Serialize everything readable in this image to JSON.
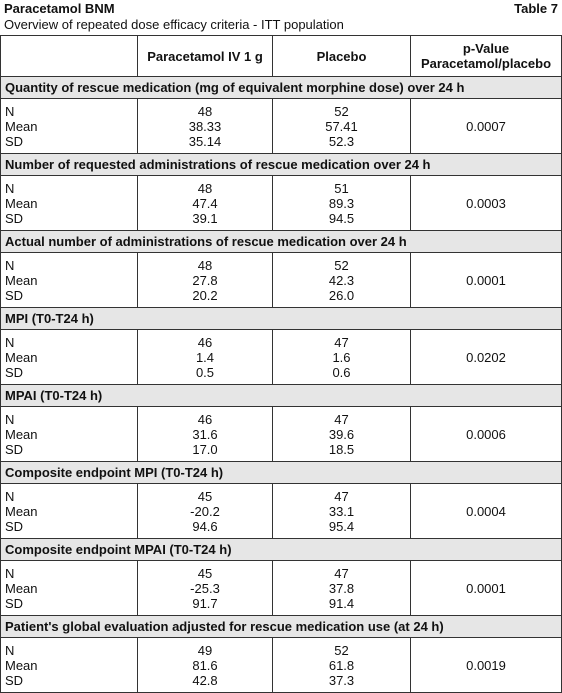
{
  "header": {
    "title": "Paracetamol BNM",
    "table_label": "Table 7",
    "subtitle": "Overview of repeated dose efficacy criteria - ITT population"
  },
  "table": {
    "columns": [
      "Paracetamol IV 1 g",
      "Placebo",
      "p-Value",
      "Paracetamol/placebo"
    ],
    "sections": [
      {
        "title": "Quantity of rescue medication (mg of equivalent morphine dose) over 24 h",
        "rows": [
          [
            "N",
            "48",
            "52"
          ],
          [
            "Mean",
            "38.33",
            "57.41"
          ],
          [
            "SD",
            "35.14",
            "52.3"
          ]
        ],
        "p_value": "0.0007"
      },
      {
        "title": "Number of requested administrations of rescue medication over 24 h",
        "rows": [
          [
            "N",
            "48",
            "51"
          ],
          [
            "Mean",
            "47.4",
            "89.3"
          ],
          [
            "SD",
            "39.1",
            "94.5"
          ]
        ],
        "p_value": "0.0003"
      },
      {
        "title": "Actual number of administrations of rescue medication over 24 h",
        "rows": [
          [
            "N",
            "48",
            "52"
          ],
          [
            "Mean",
            "27.8",
            "42.3"
          ],
          [
            "SD",
            "20.2",
            "26.0"
          ]
        ],
        "p_value": "0.0001"
      },
      {
        "title": "MPI (T0-T24 h)",
        "rows": [
          [
            "N",
            "46",
            "47"
          ],
          [
            "Mean",
            "1.4",
            "1.6"
          ],
          [
            "SD",
            "0.5",
            "0.6"
          ]
        ],
        "p_value": "0.0202"
      },
      {
        "title": "MPAI (T0-T24 h)",
        "rows": [
          [
            "N",
            "46",
            "47"
          ],
          [
            "Mean",
            "31.6",
            "39.6"
          ],
          [
            "SD",
            "17.0",
            "18.5"
          ]
        ],
        "p_value": "0.0006"
      },
      {
        "title": "Composite endpoint MPI (T0-T24 h)",
        "rows": [
          [
            "N",
            "45",
            "47"
          ],
          [
            "Mean",
            "-20.2",
            "33.1"
          ],
          [
            "SD",
            "94.6",
            "95.4"
          ]
        ],
        "p_value": "0.0004"
      },
      {
        "title": "Composite endpoint MPAI (T0-T24 h)",
        "rows": [
          [
            "N",
            "45",
            "47"
          ],
          [
            "Mean",
            "-25.3",
            "37.8"
          ],
          [
            "SD",
            "91.7",
            "91.4"
          ]
        ],
        "p_value": "0.0001"
      },
      {
        "title": "Patient's global evaluation adjusted for rescue medication use (at 24 h)",
        "rows": [
          [
            "N",
            "49",
            "52"
          ],
          [
            "Mean",
            "81.6",
            "61.8"
          ],
          [
            "SD",
            "42.8",
            "37.3"
          ]
        ],
        "p_value": "0.0019"
      }
    ]
  }
}
